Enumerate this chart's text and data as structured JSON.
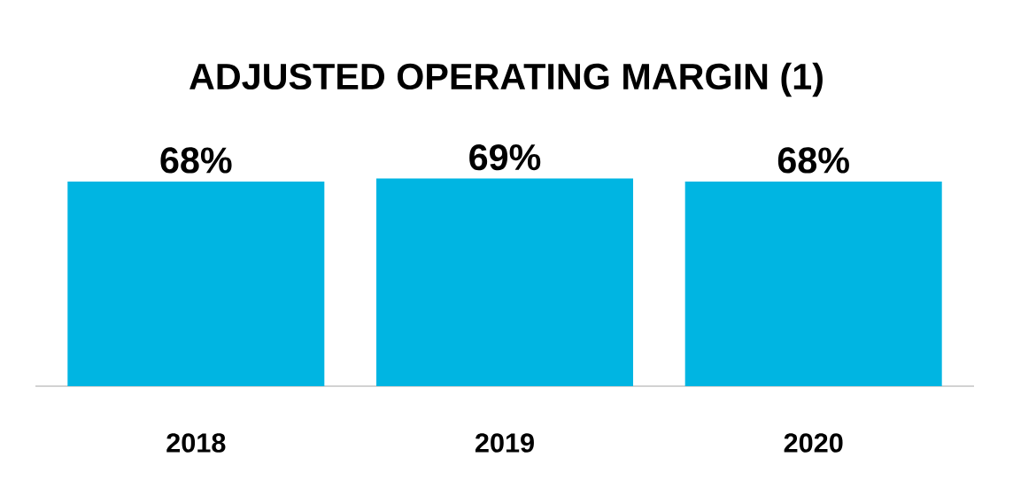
{
  "chart_data": {
    "type": "bar",
    "title": "ADJUSTED OPERATING MARGIN (1)",
    "categories": [
      "2018",
      "2019",
      "2020"
    ],
    "values": [
      68,
      69,
      68
    ],
    "value_labels": [
      "68%",
      "69%",
      "68%"
    ],
    "color": "#00b5e2"
  }
}
